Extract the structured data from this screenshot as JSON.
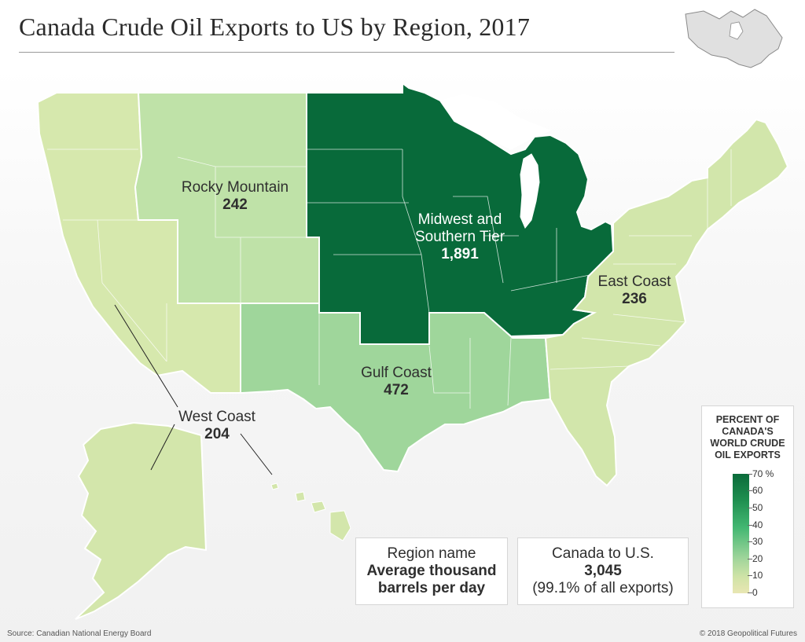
{
  "title": "Canada Crude Oil Exports to US by Region, 2017",
  "regions": {
    "rocky": {
      "name": "Rocky Mountain",
      "value": "242"
    },
    "midwest": {
      "name_line1": "Midwest and",
      "name_line2": "Southern Tier",
      "value": "1,891"
    },
    "east": {
      "name": "East Coast",
      "value": "236"
    },
    "gulf": {
      "name": "Gulf Coast",
      "value": "472"
    },
    "west": {
      "name": "West Coast",
      "value": "204"
    }
  },
  "key_box": {
    "line1": "Region name",
    "line2": "Average thousand",
    "line3": "barrels per day"
  },
  "total_box": {
    "line1": "Canada to U.S.",
    "line2": "3,045",
    "line3": "(99.1% of all exports)"
  },
  "legend": {
    "title_lines": [
      "PERCENT OF",
      "CANADA'S",
      "WORLD CRUDE",
      "OIL EXPORTS"
    ],
    "ticks": [
      "70 %",
      "60",
      "50",
      "40",
      "30",
      "20",
      "10",
      "0"
    ]
  },
  "source": "Source: Canadian National Energy Board",
  "copyright": "© 2018 Geopolitical Futures",
  "colors": {
    "west": "#d6e8ad",
    "rocky": "#bfe2a8",
    "gulf": "#9fd69b",
    "midwest": "#086a3a",
    "east": "#d2e6ab",
    "borders": "#ffffff"
  }
}
